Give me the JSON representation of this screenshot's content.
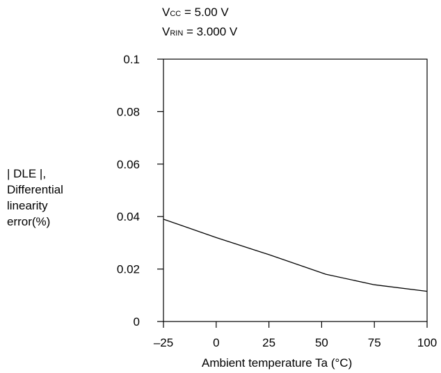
{
  "conditions": [
    {
      "sym": "V",
      "sub": "CC",
      "rest": " = 5.00 V"
    },
    {
      "sym": "V",
      "sub": "RIN",
      "rest": " = 3.000 V"
    }
  ],
  "chart_data": {
    "type": "line",
    "title": "",
    "xlabel": "Ambient temperature Ta (°C)",
    "ylabel": [
      "| DLE |,",
      "Differential",
      "linearity",
      "error(%)"
    ],
    "xlim": [
      -25,
      100
    ],
    "ylim": [
      0,
      0.1
    ],
    "xticks": [
      -25,
      0,
      25,
      50,
      75,
      100
    ],
    "xtick_labels": [
      "–25",
      "0",
      "25",
      "50",
      "75",
      "100"
    ],
    "yticks": [
      0,
      0.02,
      0.04,
      0.06,
      0.08,
      0.1
    ],
    "ytick_labels": [
      "0",
      "0.02",
      "0.04",
      "0.06",
      "0.08",
      "0.1"
    ],
    "grid": false,
    "series": [
      {
        "x": [
          -25,
          0,
          25,
          52,
          75,
          100
        ],
        "y": [
          0.039,
          0.032,
          0.0255,
          0.018,
          0.014,
          0.0115
        ]
      }
    ]
  }
}
